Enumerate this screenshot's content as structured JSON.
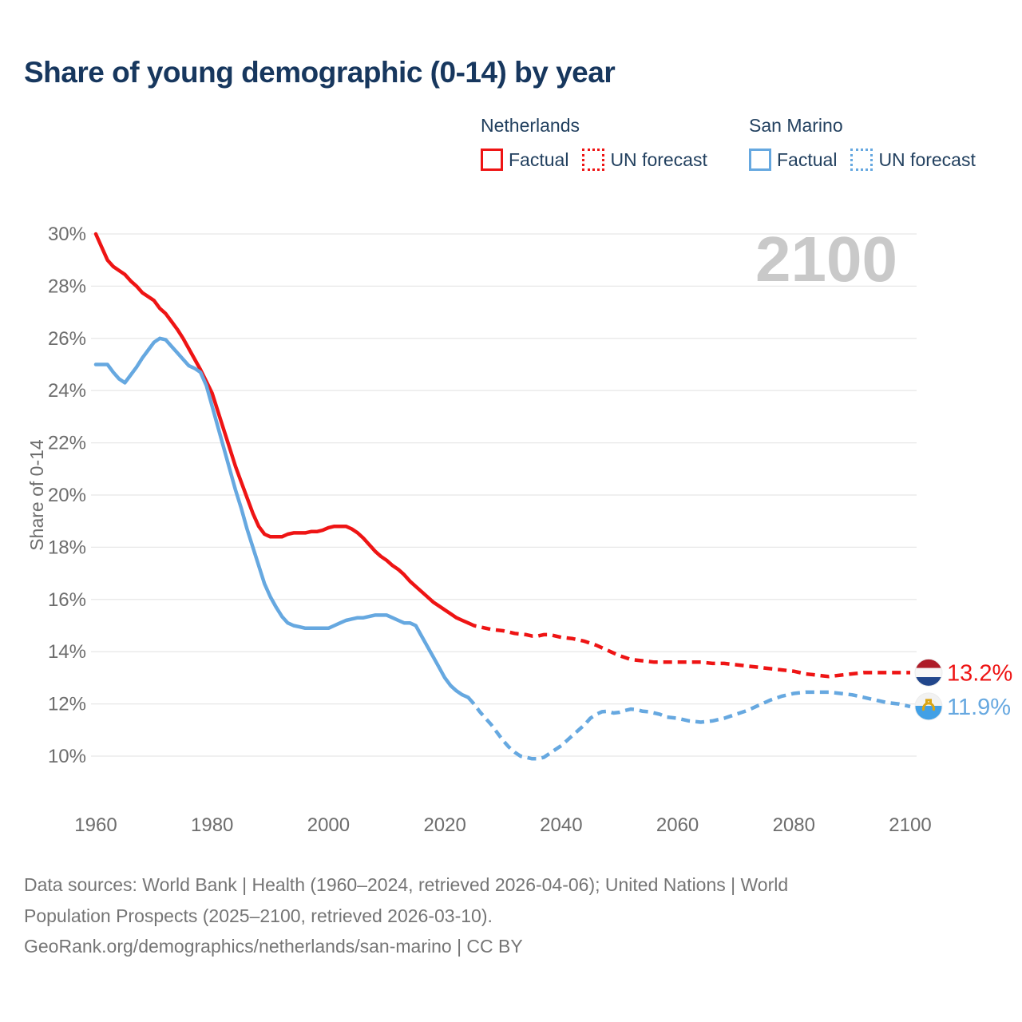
{
  "page": {
    "title": "Share of young demographic (0-14) by year"
  },
  "legend": {
    "groups": [
      {
        "heading": "Netherlands",
        "color": "#ee1414",
        "items": [
          {
            "label": "Factual",
            "style": "solid"
          },
          {
            "label": "UN forecast",
            "style": "dotted"
          }
        ]
      },
      {
        "heading": "San Marino",
        "color": "#66a8e0",
        "items": [
          {
            "label": "Factual",
            "style": "solid"
          },
          {
            "label": "UN forecast",
            "style": "dotted"
          }
        ]
      }
    ]
  },
  "footer": {
    "line1": "Data sources: World Bank | Health (1960–2024, retrieved 2026-04-06); United Nations | World",
    "line2": "Population Prospects (2025–2100, retrieved 2026-03-10).",
    "line3": "GeoRank.org/demographics/netherlands/san-marino | CC BY"
  },
  "chart_data": {
    "type": "line",
    "title": "Share of young demographic (0-14) by year",
    "xlabel": "",
    "ylabel": "Share of 0-14",
    "unit": "%",
    "watermark": "2100",
    "grid": "horizontal",
    "legend_position": "top-right",
    "xlim": [
      1960,
      2100
    ],
    "ylim": [
      10,
      30
    ],
    "x_tick_values": [
      1960,
      1980,
      2000,
      2020,
      2040,
      2060,
      2080,
      2100
    ],
    "x_tick_labels": [
      "1960",
      "1980",
      "2000",
      "2020",
      "2040",
      "2060",
      "2080",
      "2100"
    ],
    "y_tick_values": [
      30,
      28,
      26,
      24,
      22,
      20,
      18,
      16,
      14,
      12,
      10
    ],
    "y_tick_labels": [
      "30%",
      "28%",
      "26%",
      "24%",
      "22%",
      "20%",
      "18%",
      "16%",
      "14%",
      "12%",
      "10%"
    ],
    "colors": {
      "netherlands": "#ee1414",
      "san_marino": "#66a8e0",
      "gridline": "#e8e8e8",
      "watermark": "#c9c9c9",
      "tick_text": "#6d6d6d"
    },
    "series": [
      {
        "name": "Netherlands Factual",
        "country": "Netherlands",
        "segment": "Factual",
        "style": "solid",
        "color": "#ee1414",
        "points": [
          [
            1960,
            30.0
          ],
          [
            1961,
            29.5
          ],
          [
            1962,
            29.0
          ],
          [
            1963,
            28.75
          ],
          [
            1964,
            28.6
          ],
          [
            1965,
            28.45
          ],
          [
            1966,
            28.2
          ],
          [
            1967,
            28.0
          ],
          [
            1968,
            27.75
          ],
          [
            1969,
            27.6
          ],
          [
            1970,
            27.45
          ],
          [
            1971,
            27.15
          ],
          [
            1972,
            26.95
          ],
          [
            1973,
            26.65
          ],
          [
            1974,
            26.35
          ],
          [
            1975,
            26.0
          ],
          [
            1976,
            25.6
          ],
          [
            1977,
            25.2
          ],
          [
            1978,
            24.8
          ],
          [
            1979,
            24.35
          ],
          [
            1980,
            23.9
          ],
          [
            1981,
            23.2
          ],
          [
            1982,
            22.5
          ],
          [
            1983,
            21.8
          ],
          [
            1984,
            21.1
          ],
          [
            1985,
            20.5
          ],
          [
            1986,
            19.9
          ],
          [
            1987,
            19.3
          ],
          [
            1988,
            18.8
          ],
          [
            1989,
            18.5
          ],
          [
            1990,
            18.4
          ],
          [
            1991,
            18.4
          ],
          [
            1992,
            18.4
          ],
          [
            1993,
            18.5
          ],
          [
            1994,
            18.55
          ],
          [
            1995,
            18.55
          ],
          [
            1996,
            18.55
          ],
          [
            1997,
            18.6
          ],
          [
            1998,
            18.6
          ],
          [
            1999,
            18.65
          ],
          [
            2000,
            18.75
          ],
          [
            2001,
            18.8
          ],
          [
            2002,
            18.8
          ],
          [
            2003,
            18.8
          ],
          [
            2004,
            18.7
          ],
          [
            2005,
            18.55
          ],
          [
            2006,
            18.35
          ],
          [
            2007,
            18.1
          ],
          [
            2008,
            17.85
          ],
          [
            2009,
            17.65
          ],
          [
            2010,
            17.5
          ],
          [
            2011,
            17.3
          ],
          [
            2012,
            17.15
          ],
          [
            2013,
            16.95
          ],
          [
            2014,
            16.7
          ],
          [
            2015,
            16.5
          ],
          [
            2016,
            16.3
          ],
          [
            2017,
            16.1
          ],
          [
            2018,
            15.9
          ],
          [
            2019,
            15.75
          ],
          [
            2020,
            15.6
          ],
          [
            2021,
            15.45
          ],
          [
            2022,
            15.3
          ],
          [
            2023,
            15.2
          ],
          [
            2024,
            15.1
          ]
        ]
      },
      {
        "name": "Netherlands UN forecast",
        "country": "Netherlands",
        "segment": "UN forecast",
        "style": "dashed",
        "color": "#ee1414",
        "points": [
          [
            2024,
            15.1
          ],
          [
            2025,
            15.0
          ],
          [
            2026,
            14.95
          ],
          [
            2028,
            14.85
          ],
          [
            2030,
            14.8
          ],
          [
            2032,
            14.7
          ],
          [
            2034,
            14.65
          ],
          [
            2035,
            14.6
          ],
          [
            2036,
            14.6
          ],
          [
            2037,
            14.65
          ],
          [
            2038,
            14.65
          ],
          [
            2040,
            14.55
          ],
          [
            2042,
            14.5
          ],
          [
            2044,
            14.4
          ],
          [
            2046,
            14.25
          ],
          [
            2048,
            14.05
          ],
          [
            2050,
            13.85
          ],
          [
            2052,
            13.7
          ],
          [
            2054,
            13.65
          ],
          [
            2056,
            13.6
          ],
          [
            2058,
            13.6
          ],
          [
            2060,
            13.6
          ],
          [
            2062,
            13.6
          ],
          [
            2064,
            13.6
          ],
          [
            2066,
            13.55
          ],
          [
            2068,
            13.55
          ],
          [
            2070,
            13.5
          ],
          [
            2072,
            13.45
          ],
          [
            2074,
            13.4
          ],
          [
            2076,
            13.35
          ],
          [
            2078,
            13.3
          ],
          [
            2080,
            13.25
          ],
          [
            2082,
            13.15
          ],
          [
            2084,
            13.1
          ],
          [
            2086,
            13.05
          ],
          [
            2088,
            13.1
          ],
          [
            2090,
            13.15
          ],
          [
            2092,
            13.2
          ],
          [
            2094,
            13.2
          ],
          [
            2096,
            13.2
          ],
          [
            2098,
            13.2
          ],
          [
            2100,
            13.2
          ]
        ]
      },
      {
        "name": "San Marino Factual",
        "country": "San Marino",
        "segment": "Factual",
        "style": "solid",
        "color": "#66a8e0",
        "points": [
          [
            1960,
            25.0
          ],
          [
            1961,
            25.0
          ],
          [
            1962,
            25.0
          ],
          [
            1963,
            24.7
          ],
          [
            1964,
            24.45
          ],
          [
            1965,
            24.3
          ],
          [
            1966,
            24.6
          ],
          [
            1967,
            24.9
          ],
          [
            1968,
            25.25
          ],
          [
            1969,
            25.55
          ],
          [
            1970,
            25.85
          ],
          [
            1971,
            26.0
          ],
          [
            1972,
            25.95
          ],
          [
            1973,
            25.7
          ],
          [
            1974,
            25.45
          ],
          [
            1975,
            25.2
          ],
          [
            1976,
            24.95
          ],
          [
            1977,
            24.85
          ],
          [
            1978,
            24.7
          ],
          [
            1979,
            24.2
          ],
          [
            1980,
            23.4
          ],
          [
            1981,
            22.6
          ],
          [
            1982,
            21.8
          ],
          [
            1983,
            21.0
          ],
          [
            1984,
            20.2
          ],
          [
            1985,
            19.5
          ],
          [
            1986,
            18.7
          ],
          [
            1987,
            18.0
          ],
          [
            1988,
            17.3
          ],
          [
            1989,
            16.6
          ],
          [
            1990,
            16.1
          ],
          [
            1991,
            15.7
          ],
          [
            1992,
            15.35
          ],
          [
            1993,
            15.1
          ],
          [
            1994,
            15.0
          ],
          [
            1995,
            14.95
          ],
          [
            1996,
            14.9
          ],
          [
            1997,
            14.9
          ],
          [
            1998,
            14.9
          ],
          [
            1999,
            14.9
          ],
          [
            2000,
            14.9
          ],
          [
            2001,
            15.0
          ],
          [
            2002,
            15.1
          ],
          [
            2003,
            15.2
          ],
          [
            2004,
            15.25
          ],
          [
            2005,
            15.3
          ],
          [
            2006,
            15.3
          ],
          [
            2007,
            15.35
          ],
          [
            2008,
            15.4
          ],
          [
            2009,
            15.4
          ],
          [
            2010,
            15.4
          ],
          [
            2011,
            15.3
          ],
          [
            2012,
            15.2
          ],
          [
            2013,
            15.1
          ],
          [
            2014,
            15.1
          ],
          [
            2015,
            15.0
          ],
          [
            2016,
            14.6
          ],
          [
            2017,
            14.2
          ],
          [
            2018,
            13.8
          ],
          [
            2019,
            13.4
          ],
          [
            2020,
            13.0
          ],
          [
            2021,
            12.7
          ],
          [
            2022,
            12.5
          ],
          [
            2023,
            12.35
          ],
          [
            2024,
            12.25
          ]
        ]
      },
      {
        "name": "San Marino UN forecast",
        "country": "San Marino",
        "segment": "UN forecast",
        "style": "dashed",
        "color": "#66a8e0",
        "points": [
          [
            2024,
            12.25
          ],
          [
            2025,
            12.0
          ],
          [
            2026,
            11.7
          ],
          [
            2027,
            11.45
          ],
          [
            2028,
            11.2
          ],
          [
            2029,
            10.9
          ],
          [
            2030,
            10.6
          ],
          [
            2031,
            10.35
          ],
          [
            2032,
            10.15
          ],
          [
            2033,
            10.0
          ],
          [
            2034,
            9.95
          ],
          [
            2035,
            9.9
          ],
          [
            2036,
            9.9
          ],
          [
            2037,
            9.95
          ],
          [
            2038,
            10.1
          ],
          [
            2039,
            10.25
          ],
          [
            2040,
            10.4
          ],
          [
            2041,
            10.6
          ],
          [
            2042,
            10.8
          ],
          [
            2043,
            11.0
          ],
          [
            2044,
            11.2
          ],
          [
            2045,
            11.45
          ],
          [
            2046,
            11.6
          ],
          [
            2047,
            11.7
          ],
          [
            2048,
            11.72
          ],
          [
            2049,
            11.65
          ],
          [
            2050,
            11.68
          ],
          [
            2051,
            11.75
          ],
          [
            2052,
            11.8
          ],
          [
            2053,
            11.78
          ],
          [
            2054,
            11.72
          ],
          [
            2055,
            11.7
          ],
          [
            2056,
            11.65
          ],
          [
            2057,
            11.6
          ],
          [
            2058,
            11.5
          ],
          [
            2060,
            11.45
          ],
          [
            2062,
            11.35
          ],
          [
            2064,
            11.3
          ],
          [
            2066,
            11.35
          ],
          [
            2068,
            11.45
          ],
          [
            2070,
            11.6
          ],
          [
            2072,
            11.75
          ],
          [
            2074,
            11.95
          ],
          [
            2076,
            12.15
          ],
          [
            2078,
            12.3
          ],
          [
            2080,
            12.4
          ],
          [
            2082,
            12.45
          ],
          [
            2084,
            12.45
          ],
          [
            2086,
            12.45
          ],
          [
            2088,
            12.4
          ],
          [
            2090,
            12.35
          ],
          [
            2092,
            12.25
          ],
          [
            2094,
            12.15
          ],
          [
            2096,
            12.05
          ],
          [
            2098,
            12.0
          ],
          [
            2100,
            11.9
          ]
        ]
      }
    ],
    "end_labels": [
      {
        "series": "Netherlands",
        "label": "13.2%",
        "value": 13.2,
        "color": "#ee1414",
        "flag": "netherlands-flag"
      },
      {
        "series": "San Marino",
        "label": "11.9%",
        "value": 11.9,
        "color": "#66a8e0",
        "flag": "san-marino-flag"
      }
    ]
  }
}
